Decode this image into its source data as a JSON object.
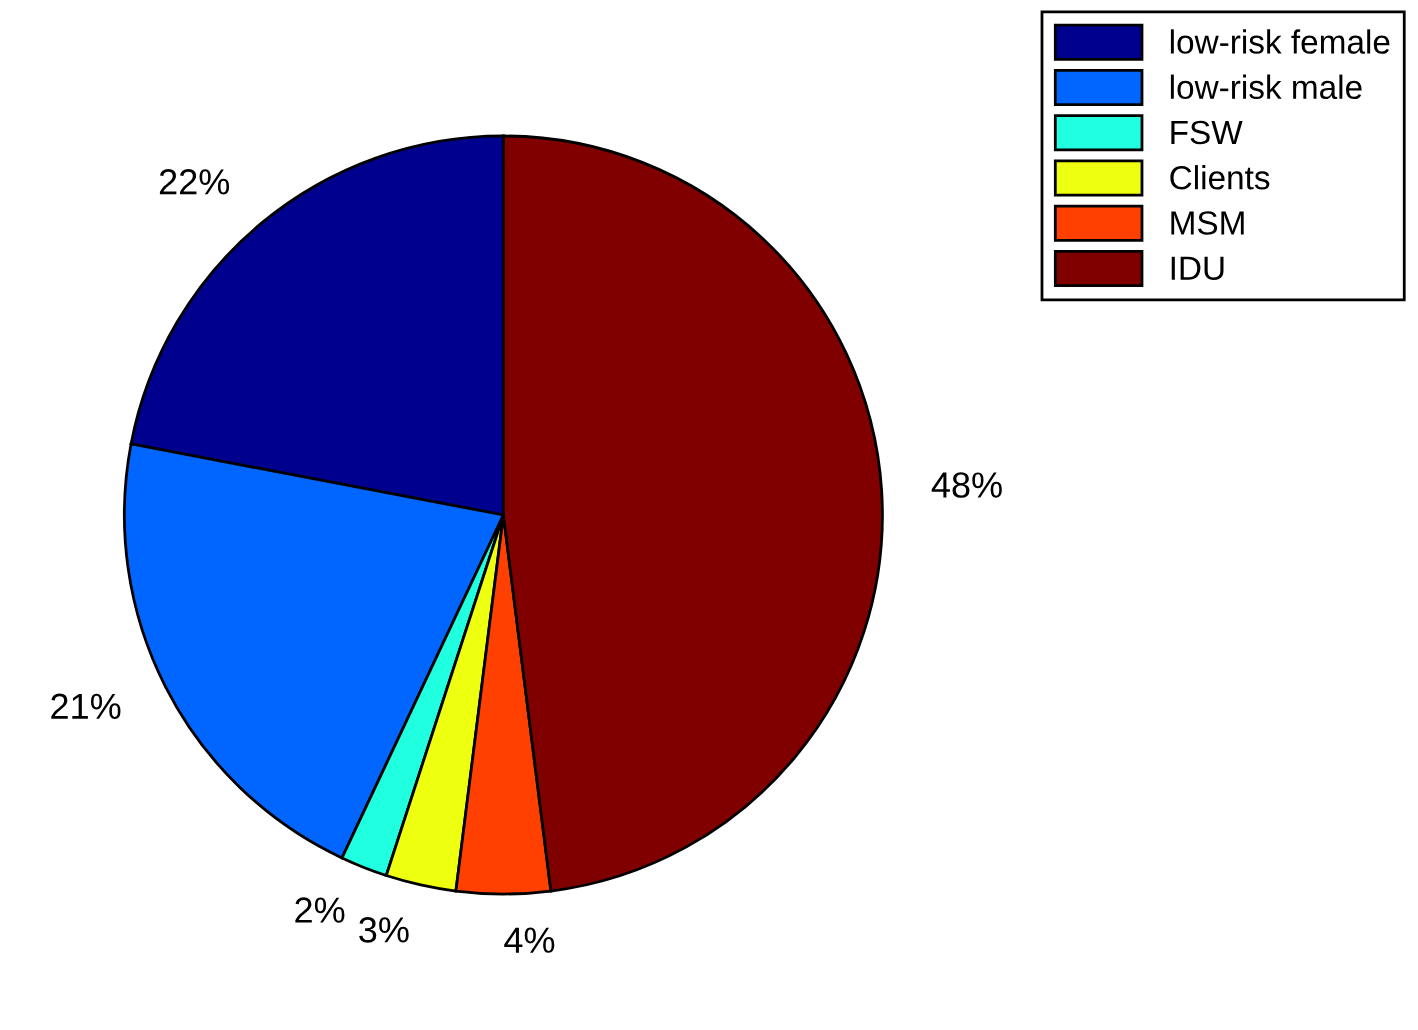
{
  "chart_data": {
    "type": "pie",
    "categories": [
      "low-risk female",
      "low-risk male",
      "FSW",
      "Clients",
      "MSM",
      "IDU"
    ],
    "values": [
      22,
      21,
      2,
      3,
      4,
      48
    ],
    "colors": [
      "#00008f",
      "#0066ff",
      "#20ffdf",
      "#efff10",
      "#ff4000",
      "#800000"
    ],
    "value_labels": [
      "22%",
      "21%",
      "2%",
      "3%",
      "4%",
      "48%"
    ],
    "legend": "top right"
  }
}
